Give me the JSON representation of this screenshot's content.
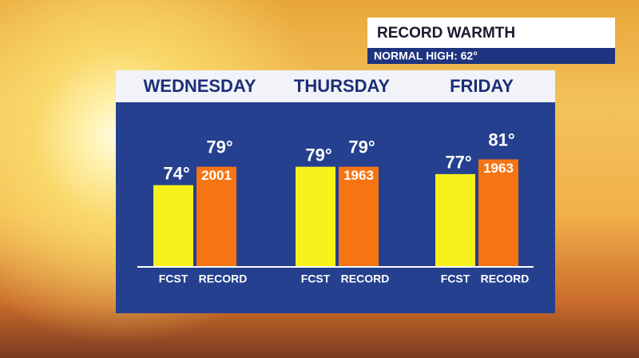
{
  "chart_data": {
    "type": "bar",
    "title": "RECORD WARMTH",
    "subtitle": "NORMAL HIGH: 62°",
    "categories": [
      "WEDNESDAY",
      "THURSDAY",
      "FRIDAY"
    ],
    "series": [
      {
        "name": "FCST",
        "color": "#f7f21c",
        "values": [
          74,
          79,
          77
        ],
        "value_labels": [
          "74°",
          "79°",
          "77°"
        ]
      },
      {
        "name": "RECORD",
        "color": "#f77412",
        "values": [
          79,
          79,
          81
        ],
        "value_labels": [
          "79°",
          "79°",
          "81°"
        ],
        "years": [
          "2001",
          "1963",
          "1963"
        ]
      }
    ],
    "ylim": [
      52,
      90
    ]
  }
}
